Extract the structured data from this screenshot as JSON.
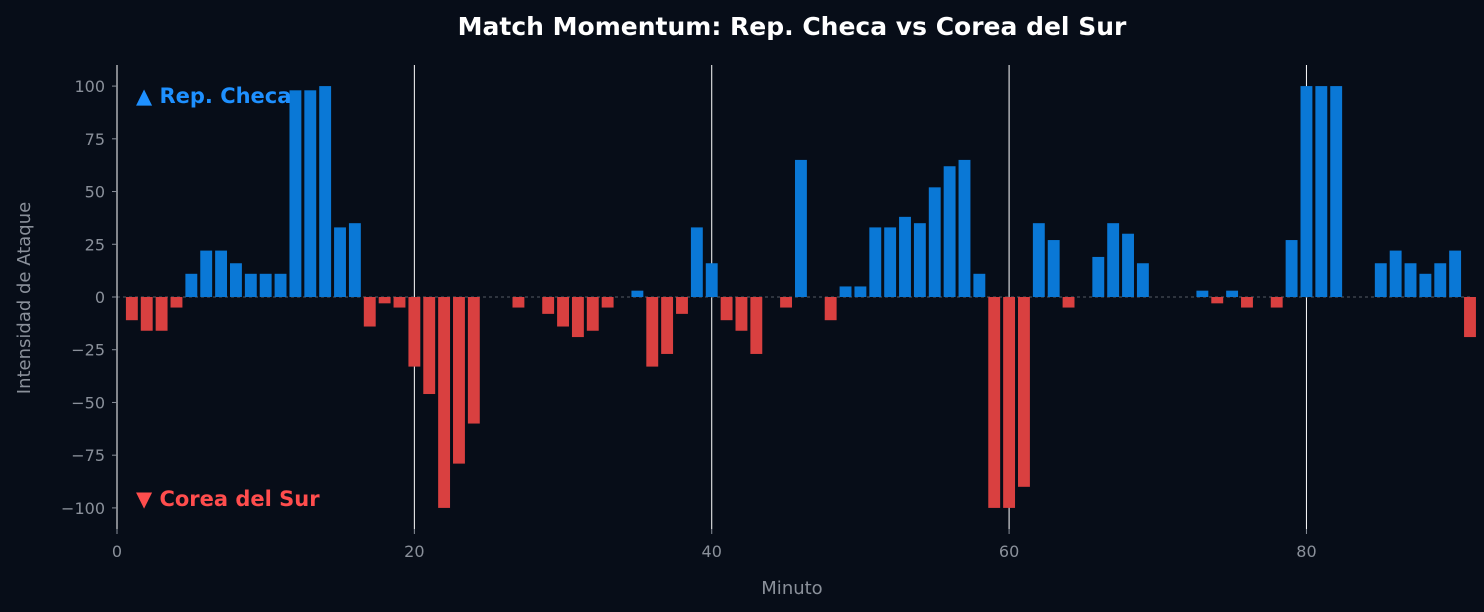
{
  "colors": {
    "background": "#070d18",
    "team_a": "#0a78d6",
    "team_b": "#d94040",
    "team_a_label": "#1e90ff",
    "team_b_label": "#ff4d4d",
    "axis": "#ffffff",
    "tick_text": "#8a909a",
    "zero_line": "#555a63",
    "marker_line": "#ffffff"
  },
  "chart_data": {
    "type": "bar",
    "title": "Match Momentum: Rep. Checa vs Corea del Sur",
    "xlabel": "Minuto",
    "ylabel": "Intensidad de Ataque",
    "xlim": [
      0,
      91
    ],
    "ylim": [
      -110,
      110
    ],
    "xticks": [
      0,
      20,
      40,
      60,
      80
    ],
    "yticks": [
      100,
      75,
      50,
      25,
      0,
      -25,
      -50,
      -75,
      -100
    ],
    "grid": false,
    "vertical_markers": [
      20,
      40,
      60,
      80
    ],
    "legend": {
      "team_a": "▲ Rep. Checa",
      "team_b": "▼ Corea del Sur",
      "placement": "left"
    },
    "series": [
      {
        "name": "Rep. Checa",
        "minutes": [
          5,
          6,
          7,
          8,
          9,
          10,
          11,
          12,
          13,
          14,
          15,
          16,
          35,
          39,
          40,
          46,
          49,
          50,
          51,
          52,
          53,
          54,
          55,
          56,
          57,
          58,
          62,
          63,
          66,
          67,
          68,
          69,
          73,
          75,
          79,
          80,
          81,
          82,
          85,
          86,
          87,
          88,
          89,
          90
        ],
        "values": [
          11,
          22,
          22,
          16,
          11,
          11,
          11,
          98,
          98,
          100,
          33,
          35,
          3,
          33,
          16,
          65,
          5,
          5,
          33,
          33,
          38,
          35,
          52,
          62,
          65,
          11,
          35,
          27,
          19,
          35,
          30,
          16,
          3,
          3,
          27,
          100,
          100,
          100,
          16,
          22,
          16,
          11,
          16,
          22
        ]
      },
      {
        "name": "Corea del Sur",
        "minutes": [
          1,
          2,
          3,
          4,
          17,
          18,
          19,
          20,
          21,
          22,
          23,
          24,
          27,
          29,
          30,
          31,
          32,
          33,
          36,
          37,
          38,
          41,
          42,
          43,
          45,
          48,
          59,
          60,
          61,
          64,
          74,
          76,
          78,
          91
        ],
        "values": [
          -11,
          -16,
          -16,
          -5,
          -14,
          -3,
          -5,
          -33,
          -46,
          -100,
          -79,
          -60,
          -5,
          -8,
          -14,
          -19,
          -16,
          -5,
          -33,
          -27,
          -8,
          -11,
          -16,
          -27,
          -5,
          -11,
          -100,
          -100,
          -90,
          -5,
          -3,
          -5,
          -5,
          -19
        ]
      }
    ]
  }
}
